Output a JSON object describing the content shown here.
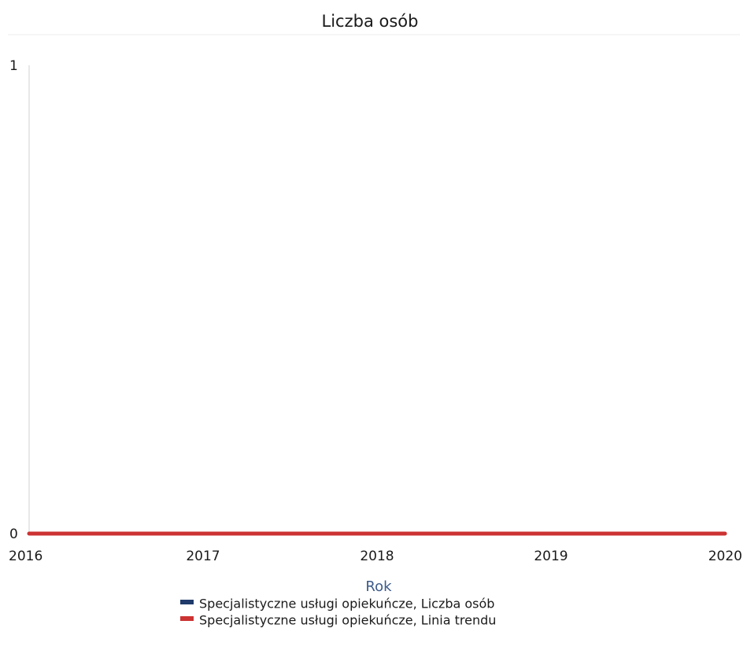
{
  "chart_data": {
    "type": "line",
    "title": "Liczba osób",
    "xlabel": "Rok",
    "ylabel": "",
    "x": [
      2016,
      2017,
      2018,
      2019,
      2020
    ],
    "xlim": [
      2016,
      2020
    ],
    "ylim": [
      0,
      1
    ],
    "y_ticks": [
      0,
      1
    ],
    "grid": false,
    "legend_position": "bottom",
    "series": [
      {
        "name": "Specjalistyczne usługi opiekuńcze, Liczba osób",
        "values": [
          0,
          0,
          0,
          0,
          0
        ],
        "color": "#1f3a6b"
      },
      {
        "name": "Specjalistyczne usługi opiekuńcze, Linia trendu",
        "values": [
          0,
          0,
          0,
          0,
          0
        ],
        "color": "#cc3333"
      }
    ]
  },
  "colors": {
    "axis": "#d0d0d0",
    "axis_title": "#3d5a8a"
  }
}
